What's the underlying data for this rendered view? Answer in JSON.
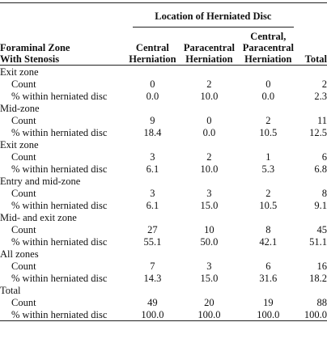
{
  "table": {
    "group_header": "Location of Herniated Disc",
    "stub_header": "Foraminal Zone\nWith Stenosis",
    "columns": [
      "Central\nHerniation",
      "Paracentral\nHerniation",
      "Central,\nParacentral\nHerniation",
      "Total"
    ],
    "rows": [
      {
        "zone": "Exit zone",
        "count_label": "Count",
        "count": [
          "0",
          "2",
          "0",
          "2"
        ],
        "pct_label": "% within herniated disc",
        "pct": [
          "0.0",
          "10.0",
          "0.0",
          "2.3"
        ]
      },
      {
        "zone": "Mid-zone",
        "count_label": "Count",
        "count": [
          "9",
          "0",
          "2",
          "11"
        ],
        "pct_label": "% within herniated disc",
        "pct": [
          "18.4",
          "0.0",
          "10.5",
          "12.5"
        ]
      },
      {
        "zone": "Exit zone",
        "count_label": "Count",
        "count": [
          "3",
          "2",
          "1",
          "6"
        ],
        "pct_label": "% within herniated disc",
        "pct": [
          "6.1",
          "10.0",
          "5.3",
          "6.8"
        ]
      },
      {
        "zone": "Entry and mid-zone",
        "count_label": "Count",
        "count": [
          "3",
          "3",
          "2",
          "8"
        ],
        "pct_label": "% within herniated disc",
        "pct": [
          "6.1",
          "15.0",
          "10.5",
          "9.1"
        ]
      },
      {
        "zone": "Mid- and exit zone",
        "count_label": "Count",
        "count": [
          "27",
          "10",
          "8",
          "45"
        ],
        "pct_label": "% within herniated disc",
        "pct": [
          "55.1",
          "50.0",
          "42.1",
          "51.1"
        ]
      },
      {
        "zone": "All zones",
        "count_label": "Count",
        "count": [
          "7",
          "3",
          "6",
          "16"
        ],
        "pct_label": "% within herniated disc",
        "pct": [
          "14.3",
          "15.0",
          "31.6",
          "18.2"
        ]
      },
      {
        "zone": "Total",
        "count_label": "Count",
        "count": [
          "49",
          "20",
          "19",
          "88"
        ],
        "pct_label": "% within herniated disc",
        "pct": [
          "100.0",
          "100.0",
          "100.0",
          "100.0"
        ]
      }
    ]
  }
}
